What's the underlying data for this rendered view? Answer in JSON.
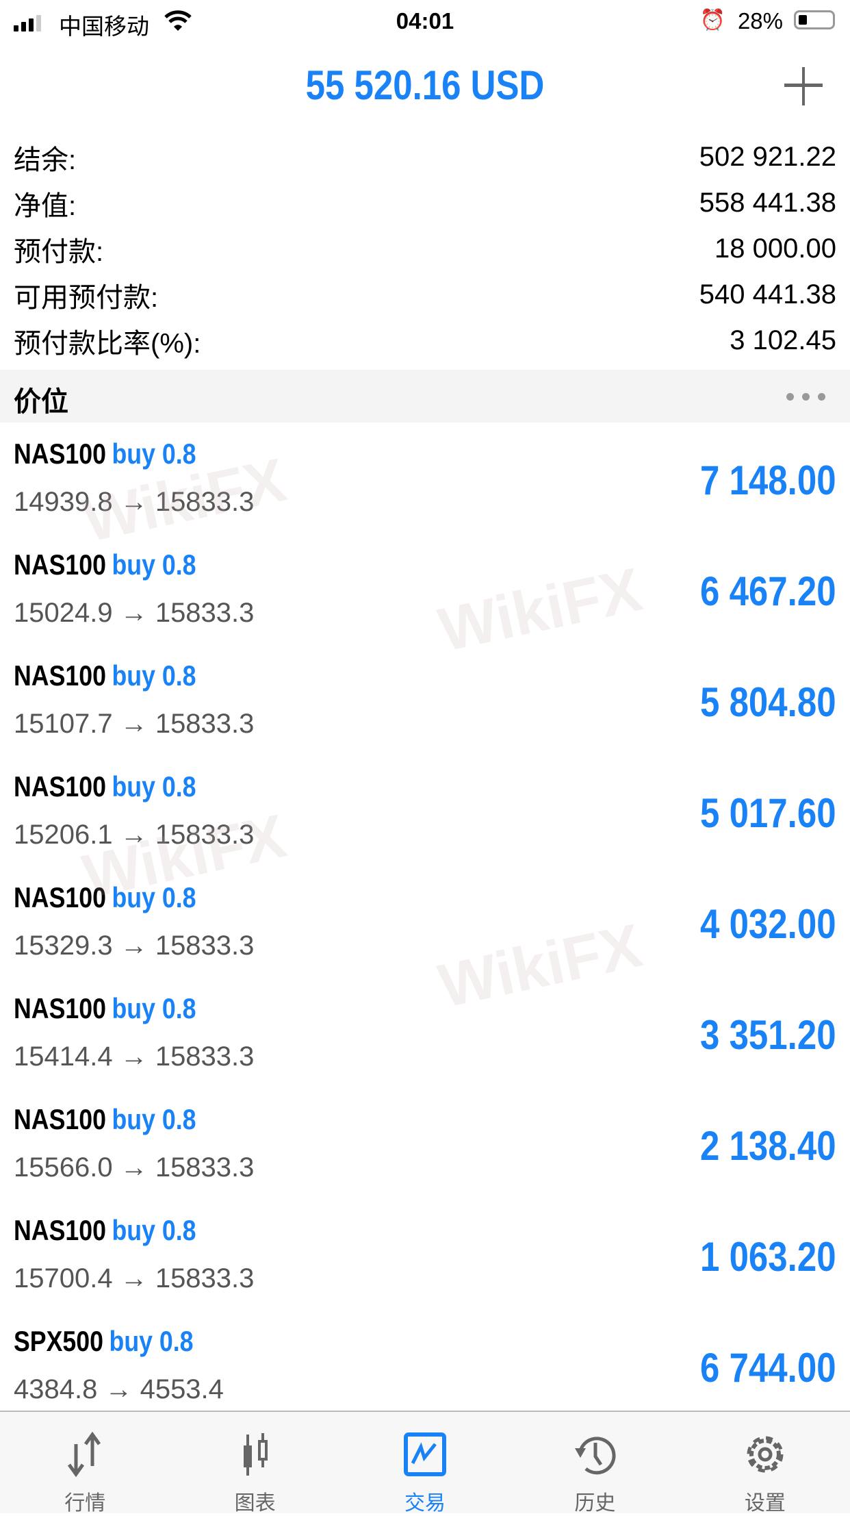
{
  "status_bar": {
    "carrier": "中国移动",
    "time": "04:01",
    "battery": "28%",
    "battery_level": 0.28
  },
  "header": {
    "title": "55 520.16 USD",
    "add_icon": "plus-icon"
  },
  "account": [
    {
      "label": "结余:",
      "value": "502 921.22"
    },
    {
      "label": "净值:",
      "value": "558 441.38"
    },
    {
      "label": "预付款:",
      "value": "18 000.00"
    },
    {
      "label": "可用预付款:",
      "value": "540 441.38"
    },
    {
      "label": "预付款比率(%):",
      "value": "3 102.45"
    }
  ],
  "section": {
    "title": "价位",
    "menu_icon": "more-dots-icon"
  },
  "positions": [
    {
      "symbol": "NAS100",
      "side": "buy 0.8",
      "prices": "14939.8 → 15833.3",
      "profit": "7 148.00"
    },
    {
      "symbol": "NAS100",
      "side": "buy 0.8",
      "prices": "15024.9 → 15833.3",
      "profit": "6 467.20"
    },
    {
      "symbol": "NAS100",
      "side": "buy 0.8",
      "prices": "15107.7 → 15833.3",
      "profit": "5 804.80"
    },
    {
      "symbol": "NAS100",
      "side": "buy 0.8",
      "prices": "15206.1 → 15833.3",
      "profit": "5 017.60"
    },
    {
      "symbol": "NAS100",
      "side": "buy 0.8",
      "prices": "15329.3 → 15833.3",
      "profit": "4 032.00"
    },
    {
      "symbol": "NAS100",
      "side": "buy 0.8",
      "prices": "15414.4 → 15833.3",
      "profit": "3 351.20"
    },
    {
      "symbol": "NAS100",
      "side": "buy 0.8",
      "prices": "15566.0 → 15833.3",
      "profit": "2 138.40"
    },
    {
      "symbol": "NAS100",
      "side": "buy 0.8",
      "prices": "15700.4 → 15833.3",
      "profit": "1 063.20"
    },
    {
      "symbol": "SPX500",
      "side": "buy 0.8",
      "prices": "4384.8 → 4553.4",
      "profit": "6 744.00"
    }
  ],
  "watermark": "WikiFX",
  "tabs": [
    {
      "label": "行情",
      "icon": "quotes-arrows-icon"
    },
    {
      "label": "图表",
      "icon": "candlestick-icon"
    },
    {
      "label": "交易",
      "icon": "trade-chart-icon",
      "active": true
    },
    {
      "label": "历史",
      "icon": "history-clock-icon"
    },
    {
      "label": "设置",
      "icon": "gear-icon"
    }
  ],
  "colors": {
    "accent": "#1a82f7",
    "icon_gray": "#666666",
    "section_bg": "#f4f4f4"
  }
}
